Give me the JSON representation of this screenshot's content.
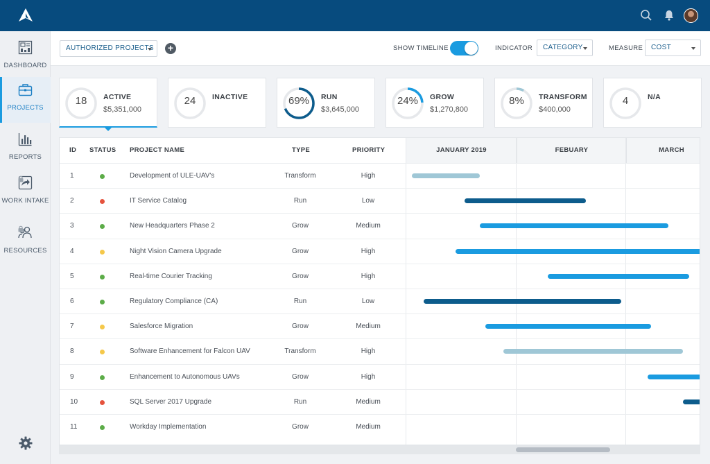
{
  "app": {
    "accent": "#1a9be0",
    "header_color": "#074b7e"
  },
  "sidebar": {
    "items": [
      {
        "label": "DASHBOARD",
        "icon": "dashboard-icon",
        "active": false,
        "locked": false
      },
      {
        "label": "PROJECTS",
        "icon": "briefcase-icon",
        "active": true,
        "locked": false
      },
      {
        "label": "REPORTS",
        "icon": "bar-chart-icon",
        "active": false,
        "locked": false
      },
      {
        "label": "WORK INTAKE",
        "icon": "share-arrow-icon",
        "active": false,
        "locked": true
      },
      {
        "label": "RESOURCES",
        "icon": "people-icon",
        "active": false,
        "locked": true
      }
    ]
  },
  "toolbar": {
    "view_selector": "AUTHORIZED PROJECTS",
    "show_timeline_label": "SHOW TIMELINE",
    "show_timeline_on": true,
    "indicator_label": "INDICATOR",
    "indicator_value": "CATEGORY",
    "measure_label": "MEASURE",
    "measure_value": "COST"
  },
  "cards": [
    {
      "ring_text": "18",
      "title": "ACTIVE",
      "value": "$5,351,000",
      "progress": 0,
      "color": "#1a9be0",
      "selected": true
    },
    {
      "ring_text": "24",
      "title": "INACTIVE",
      "value": "",
      "progress": 0,
      "color": "#1a9be0",
      "selected": false
    },
    {
      "ring_text": "69%",
      "title": "RUN",
      "value": "$3,645,000",
      "progress": 0.69,
      "color": "#0d5c8c",
      "selected": false
    },
    {
      "ring_text": "24%",
      "title": "GROW",
      "value": "$1,270,800",
      "progress": 0.24,
      "color": "#1a9be0",
      "selected": false
    },
    {
      "ring_text": "8%",
      "title": "TRANSFORM",
      "value": "$400,000",
      "progress": 0.08,
      "color": "#9fc7d6",
      "selected": false
    },
    {
      "ring_text": "4",
      "title": "N/A",
      "value": "",
      "progress": 0,
      "color": "#1a9be0",
      "selected": false
    }
  ],
  "table": {
    "headers": {
      "id": "ID",
      "status": "STATUS",
      "name": "PROJECT NAME",
      "type": "TYPE",
      "priority": "PRIORITY"
    },
    "months": [
      "JANUARY 2019",
      "FEBUARY",
      "MARCH"
    ],
    "status_colors": {
      "green": "#5cac48",
      "red": "#e5533d",
      "yellow": "#f5c84a"
    },
    "type_colors": {
      "Transform": "#9fc7d6",
      "Run": "#0d5c8c",
      "Grow": "#1a9be0"
    },
    "rows": [
      {
        "id": "1",
        "status": "green",
        "name": "Development of ULE-UAV's",
        "type": "Transform",
        "priority": "High",
        "start": 0.02,
        "end": 0.25
      },
      {
        "id": "2",
        "status": "red",
        "name": "IT Service Catalog",
        "type": "Run",
        "priority": "Low",
        "start": 0.2,
        "end": 0.61
      },
      {
        "id": "3",
        "status": "green",
        "name": "New Headquarters Phase 2",
        "type": "Grow",
        "priority": "Medium",
        "start": 0.25,
        "end": 0.89
      },
      {
        "id": "4",
        "status": "yellow",
        "name": "Night Vision Camera Upgrade",
        "type": "Grow",
        "priority": "High",
        "start": 0.17,
        "end": 1.0
      },
      {
        "id": "5",
        "status": "green",
        "name": "Real-time Courier Tracking",
        "type": "Grow",
        "priority": "High",
        "start": 0.48,
        "end": 0.96
      },
      {
        "id": "6",
        "status": "green",
        "name": "Regulatory Compliance (CA)",
        "type": "Run",
        "priority": "Low",
        "start": 0.06,
        "end": 0.73
      },
      {
        "id": "7",
        "status": "yellow",
        "name": "Salesforce Migration",
        "type": "Grow",
        "priority": "Medium",
        "start": 0.27,
        "end": 0.83
      },
      {
        "id": "8",
        "status": "yellow",
        "name": "Software Enhancement for Falcon UAV",
        "type": "Transform",
        "priority": "High",
        "start": 0.33,
        "end": 0.94
      },
      {
        "id": "9",
        "status": "green",
        "name": "Enhancement to Autonomous UAVs",
        "type": "Grow",
        "priority": "High",
        "start": 0.82,
        "end": 1.0
      },
      {
        "id": "10",
        "status": "red",
        "name": "SQL Server 2017 Upgrade",
        "type": "Run",
        "priority": "Medium",
        "start": 0.94,
        "end": 1.0
      },
      {
        "id": "11",
        "status": "green",
        "name": "Workday Implementation",
        "type": "Grow",
        "priority": "Medium",
        "start": null,
        "end": null
      }
    ]
  }
}
